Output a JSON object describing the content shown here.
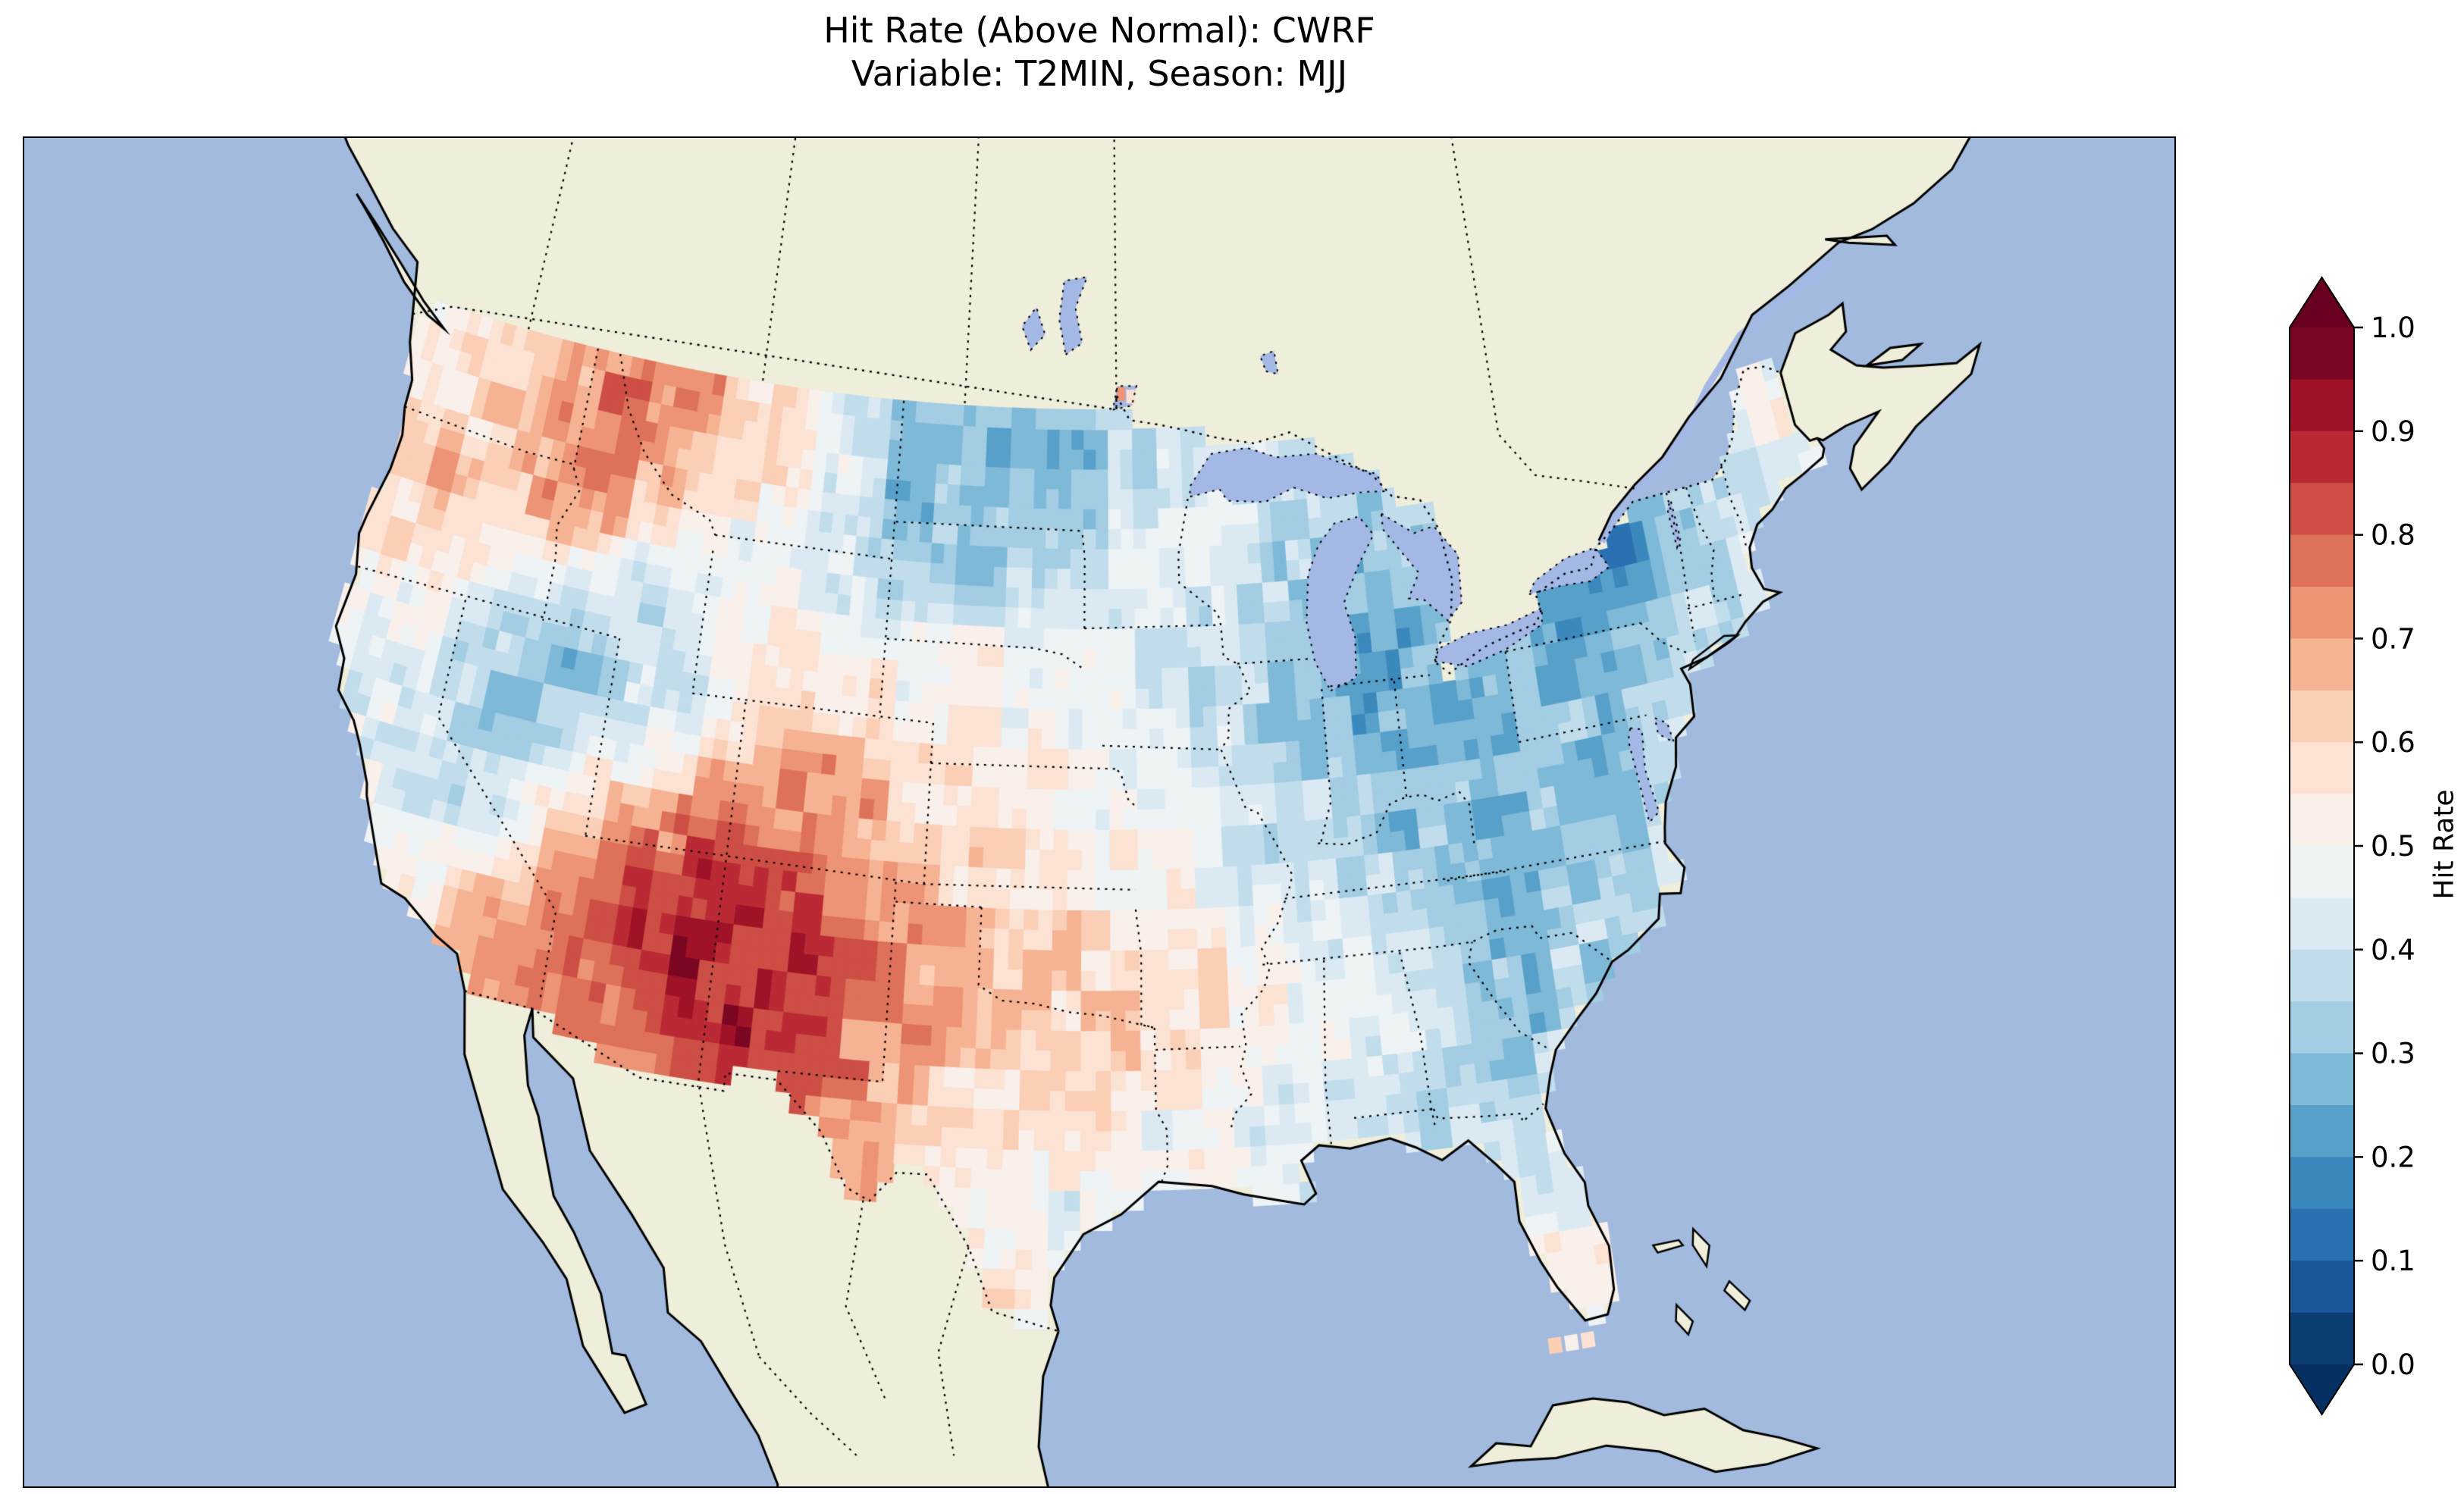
{
  "figure": {
    "title_line1": "Hit Rate (Above Normal): CWRF",
    "title_line2": "Variable: T2MIN, Season: MJJ"
  },
  "colorbar": {
    "label": "Hit Rate",
    "ticks": [
      "1.0",
      "0.9",
      "0.8",
      "0.7",
      "0.6",
      "0.5",
      "0.4",
      "0.3",
      "0.2",
      "0.1",
      "0.0"
    ],
    "vmin": 0.0,
    "vmax": 1.0,
    "over_color": "#67001f",
    "under_color": "#053061"
  },
  "map": {
    "region": "Contiguous United States",
    "ocean_color": "#a1bade",
    "land_color": "#efeedb",
    "lake_color": "#a4b8e6"
  },
  "chart_data": {
    "type": "heatmap",
    "title": "Hit Rate (Above Normal): CWRF",
    "subtitle": "Variable: T2MIN, Season: MJJ",
    "value_name": "Hit Rate",
    "vmin": 0.0,
    "vmax": 1.0,
    "colormap": "RdBu_r",
    "legend_position": "right",
    "grid": {
      "lon_start": -124,
      "lon_step": 2,
      "lat_start": 49,
      "lat_step": -2,
      "values": [
        [
          0.55,
          0.6,
          0.62,
          0.68,
          0.72,
          0.75,
          0.7,
          0.6,
          0.5,
          0.45,
          0.35,
          0.3,
          0.28,
          0.3,
          0.3,
          0.35,
          0.4,
          0.45,
          0.4,
          0.38,
          0.4,
          0.4,
          0.35,
          0.3,
          0.3,
          0.35,
          0.4,
          0.5,
          0.5
        ],
        [
          0.58,
          0.55,
          0.6,
          0.72,
          0.78,
          0.75,
          0.65,
          0.6,
          0.55,
          0.45,
          0.3,
          0.28,
          0.3,
          0.28,
          0.32,
          0.38,
          0.45,
          0.42,
          0.35,
          0.32,
          0.35,
          0.35,
          0.3,
          0.25,
          0.15,
          0.3,
          0.38,
          0.48,
          0.52
        ],
        [
          0.6,
          0.68,
          0.62,
          0.7,
          0.75,
          0.6,
          0.5,
          0.48,
          0.45,
          0.4,
          0.35,
          0.33,
          0.3,
          0.35,
          0.42,
          0.45,
          0.42,
          0.4,
          0.35,
          0.3,
          0.32,
          0.35,
          0.3,
          0.2,
          0.08,
          0.25,
          0.4,
          0.45,
          0.5
        ],
        [
          0.55,
          0.6,
          0.5,
          0.45,
          0.38,
          0.35,
          0.4,
          0.5,
          0.55,
          0.5,
          0.48,
          0.5,
          0.52,
          0.5,
          0.45,
          0.42,
          0.4,
          0.38,
          0.3,
          0.28,
          0.25,
          0.3,
          0.25,
          0.2,
          0.18,
          0.3,
          0.35,
          0.4,
          0.45
        ],
        [
          0.5,
          0.48,
          0.42,
          0.3,
          0.28,
          0.35,
          0.38,
          0.45,
          0.55,
          0.6,
          0.55,
          0.55,
          0.55,
          0.5,
          0.48,
          0.45,
          0.4,
          0.35,
          0.3,
          0.25,
          0.25,
          0.28,
          0.3,
          0.3,
          0.32,
          0.35,
          0.38,
          0.4,
          0.42
        ],
        [
          0.45,
          0.42,
          0.4,
          0.35,
          0.38,
          0.5,
          0.55,
          0.65,
          0.72,
          0.75,
          0.68,
          0.6,
          0.58,
          0.55,
          0.5,
          0.48,
          0.45,
          0.4,
          0.35,
          0.3,
          0.28,
          0.3,
          0.28,
          0.3,
          0.33,
          0.35,
          0.4,
          0.42,
          0.4
        ],
        [
          0.48,
          0.5,
          0.45,
          0.4,
          0.55,
          0.7,
          0.78,
          0.85,
          0.8,
          0.82,
          0.7,
          0.65,
          0.6,
          0.6,
          0.55,
          0.5,
          0.48,
          0.42,
          0.38,
          0.35,
          0.3,
          0.28,
          0.3,
          0.32,
          0.35,
          0.38,
          0.4,
          0.4,
          0.4
        ],
        [
          0.5,
          0.55,
          0.52,
          0.6,
          0.7,
          0.8,
          0.88,
          0.92,
          0.85,
          0.88,
          0.78,
          0.72,
          0.65,
          0.62,
          0.6,
          0.58,
          0.6,
          0.55,
          0.45,
          0.4,
          0.32,
          0.3,
          0.35,
          0.35,
          0.38,
          0.4,
          0.4,
          0.4,
          0.4
        ],
        [
          0.52,
          0.55,
          0.6,
          0.65,
          0.72,
          0.78,
          0.8,
          0.85,
          0.9,
          0.82,
          0.75,
          0.7,
          0.6,
          0.58,
          0.6,
          0.62,
          0.55,
          0.5,
          0.48,
          0.45,
          0.35,
          0.25,
          0.35,
          0.4,
          0.4,
          0.4,
          0.4,
          0.4,
          0.4
        ],
        [
          0.5,
          0.5,
          0.5,
          0.55,
          0.6,
          0.65,
          0.7,
          0.78,
          0.85,
          0.8,
          0.72,
          0.62,
          0.58,
          0.6,
          0.55,
          0.5,
          0.48,
          0.45,
          0.42,
          0.4,
          0.35,
          0.38,
          0.42,
          0.4,
          0.4,
          0.4,
          0.4,
          0.4,
          0.4
        ],
        [
          0.5,
          0.5,
          0.5,
          0.5,
          0.5,
          0.55,
          0.6,
          0.65,
          0.75,
          0.7,
          0.65,
          0.6,
          0.55,
          0.5,
          0.45,
          0.42,
          0.45,
          0.4,
          0.45,
          0.45,
          0.42,
          0.42,
          0.45,
          0.45,
          0.45,
          0.45,
          0.45,
          0.45,
          0.45
        ],
        [
          0.5,
          0.5,
          0.5,
          0.5,
          0.5,
          0.5,
          0.5,
          0.55,
          0.6,
          0.58,
          0.55,
          0.55,
          0.6,
          0.55,
          0.5,
          0.48,
          0.48,
          0.48,
          0.48,
          0.48,
          0.5,
          0.5,
          0.52,
          0.5,
          0.5,
          0.5,
          0.5,
          0.5,
          0.5
        ],
        [
          0.5,
          0.5,
          0.5,
          0.5,
          0.5,
          0.5,
          0.5,
          0.5,
          0.5,
          0.5,
          0.5,
          0.5,
          0.5,
          0.55,
          0.5,
          0.5,
          0.5,
          0.5,
          0.5,
          0.5,
          0.5,
          0.5,
          0.55,
          0.5,
          0.5,
          0.5,
          0.5,
          0.5,
          0.5
        ]
      ]
    },
    "extra_cells": [
      {
        "lon": -94.95,
        "lat": 49.4,
        "value": 0.72,
        "size": 0.35
      },
      {
        "lon": -94.55,
        "lat": 49.33,
        "value": 0.6,
        "size": 0.35
      },
      {
        "lon": -82.1,
        "lat": 24.65,
        "value": 0.62,
        "size": 0.4
      },
      {
        "lon": -81.6,
        "lat": 24.65,
        "value": 0.5,
        "size": 0.4
      },
      {
        "lon": -81.1,
        "lat": 24.65,
        "value": 0.6,
        "size": 0.4
      }
    ]
  }
}
